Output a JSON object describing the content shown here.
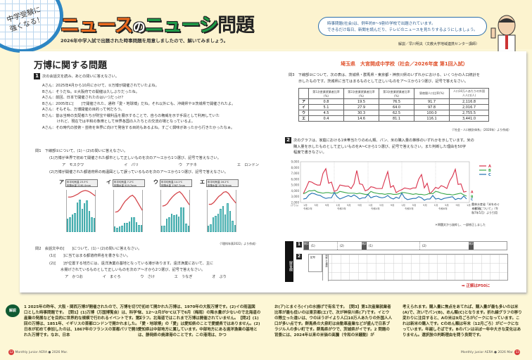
{
  "header": {
    "badge_lines": [
      "中学受験に",
      "強くなる！"
    ],
    "logo": {
      "part1": "ニュース",
      "part2": "の",
      "part3": "ニューシ",
      "part4": "問題",
      "ruby": "もんだい"
    },
    "subtitle": "2026年中学入試で出題された時事問題を用意しましたので、解いてみましょう。",
    "bubble_line1": "時事問題(社会)は、例年約8～9割の学校で出題されています。",
    "bubble_line2": "できるだけ毎日、新聞を読んだり、テレビのニュースを見たりするようにしましょう。",
    "author": "解説／早川明夫（文教大学地域連携センター講師）"
  },
  "main": {
    "title": "万博に関する問題",
    "school": "埼玉県　大宮開成中学校（社会／2026年度 第1回入試）",
    "q1": {
      "num": "1",
      "intro": "次の会話文を読み、あとの問いに答えなさい。",
      "dialogue": [
        "Aさん：2025年4月から10月にかけて、①万博が開催されていたよね。",
        "Bさん：そうだね。②大阪府での開催は久しぶりだったね。",
        "Aさん：前回、日本で開催されたのはいつだっけ？",
        "Bさん：2005年に[　　]で開催された、通称「愛・地球博」だね。それ以外にも、沖縄県や③茨城県で開催されたよ。",
        "Aさん：そもそも、万博開催の目的って何だろう。",
        "Bさん：昔は当時の支配者たちが財宝や戦利品を展示することで、自らの権威を示す手段として利用していた",
        "　　　　けれど、現在では平和の象徴として世界各国の人たちとの交流の場となっているよ。",
        "Aさん：その時代の技術・芸術を世界に向けて発信する目的もあるよね。すごく興味があったから行きたかったなぁ。"
      ],
      "toi1": {
        "head": "問1　下線部①について、(1)・(2)の問いに答えなさい。",
        "p1": "(1)万博が世界で初めて開催された都市として正しいものを次のア～エから1つ選び、記号で答えなさい。",
        "choices1": [
          "ア　モスクワ",
          "イ　パリ",
          "ウ　アテネ",
          "エ　ロンドン"
        ],
        "p2": "(2)万博が開催された都道府県の雨温図として誤っているものを次のア～エから1つ選び、記号で答えなさい。",
        "source": "（『理科年表2022』より作成）"
      },
      "toi2": {
        "head": "問2　会話文中の[　　]について、(1)・(2)の問いに答えなさい。",
        "p1": "(1)[　　]に当てはまる都道府県名を書きなさい。",
        "p2a": "(2)[　　]が位置する地方には、遠洋漁業の基地となっている港があります。遠洋漁業において、主に",
        "p2b": "水揚げされているものとして正しいものを次のア～オから2つ選び、記号で答えなさい。",
        "choices": [
          "ア　かつお",
          "イ　まぐろ",
          "ウ　さけ",
          "エ　うなぎ",
          "オ　ぶり"
        ]
      },
      "toi3": {
        "head": "問3　下線部③について、次の表は、茨城県・群馬県・東京都・神奈川県のいずれかにおける、いくつかの人口統計を",
        "head2": "示したものです。茨城県に当てはまるものとして正しいものをア～エから1つ選び、記号で答えなさい。",
        "source": "（『社会・人口統計体系』（2020年）より作成）"
      }
    },
    "q2": {
      "num": "2",
      "text1": "次のグラフは、家庭における1世帯当たりのめん類、パン、米の購入量の推移のいずれかを示しています。米の",
      "text2": "購入量を示したものとして正しいものをA～Cから1つ選び、記号で答えなさい。また判断した理由を50字",
      "text3": "程度で書きなさい。",
      "graph_source": "農林水産省「米をめぐる状況について」（令和7年5月）より引用",
      "note": "＊問題文から抜粋し、一部修正しました"
    },
    "answer": {
      "label": "解答欄",
      "row1": [
        "問1",
        "(1)",
        "(2)",
        "問2",
        "(1)",
        "(2)",
        "問3"
      ],
      "row2": [
        "記号",
        "判断した理由"
      ],
      "link": "正解はP50に"
    }
  },
  "chart_data": [
    {
      "type": "bar",
      "title": "ア",
      "info": {
        "avg_temp": "年平均気温 23.3℃",
        "precip": "年降水量 2161.0mm"
      },
      "categories": [
        "1",
        "2",
        "3",
        "4",
        "5",
        "6",
        "7",
        "8",
        "9",
        "10",
        "11",
        "12"
      ],
      "values": [
        110,
        120,
        145,
        160,
        245,
        270,
        190,
        240,
        260,
        175,
        120,
        115
      ],
      "temp": [
        18,
        18,
        19,
        21,
        23,
        26,
        28,
        29,
        28,
        26,
        23,
        20
      ],
      "ylabel_left": "気温(℃)",
      "ylabel_right": "降水量(mm)",
      "ylim_temp": [
        -40,
        30
      ],
      "ylim_precip": [
        0,
        350
      ]
    },
    {
      "type": "bar",
      "title": "イ",
      "info": {
        "avg_temp": "年平均気温 7.2℃",
        "precip": "年降水量 919.7mm"
      },
      "categories": [
        "1",
        "2",
        "3",
        "4",
        "5",
        "6",
        "7",
        "8",
        "9",
        "10",
        "11",
        "12"
      ],
      "values": [
        45,
        35,
        45,
        55,
        75,
        75,
        90,
        125,
        125,
        80,
        60,
        60
      ],
      "temp": [
        -7,
        -6,
        -2,
        5,
        11,
        15,
        19,
        21,
        17,
        10,
        3,
        -4
      ],
      "ylabel_left": "気温(℃)",
      "ylabel_right": "降水量(mm)",
      "ylim_temp": [
        -40,
        30
      ],
      "ylim_precip": [
        0,
        350
      ]
    },
    {
      "type": "bar",
      "title": "ウ",
      "info": {
        "avg_temp": "年平均気温 14.1℃",
        "precip": "年降水量 1367.7mm"
      },
      "categories": [
        "1",
        "2",
        "3",
        "4",
        "5",
        "6",
        "7",
        "8",
        "9",
        "10",
        "11",
        "12"
      ],
      "values": [
        55,
        55,
        110,
        125,
        150,
        140,
        145,
        130,
        205,
        205,
        70,
        50
      ],
      "temp": [
        3,
        4,
        7,
        13,
        18,
        22,
        25,
        27,
        23,
        17,
        11,
        5
      ],
      "ylabel_left": "気温(℃)",
      "ylabel_right": "降水量(mm)",
      "ylim_temp": [
        -40,
        30
      ],
      "ylim_precip": [
        0,
        350
      ]
    },
    {
      "type": "bar",
      "title": "エ",
      "info": {
        "avg_temp": "年平均気温 16.2℃",
        "precip": "年降水量 1578.9mm"
      },
      "categories": [
        "1",
        "2",
        "3",
        "4",
        "5",
        "6",
        "7",
        "8",
        "9",
        "10",
        "11",
        "12"
      ],
      "values": [
        55,
        65,
        120,
        135,
        150,
        195,
        215,
        145,
        240,
        175,
        95,
        60
      ],
      "temp": [
        6,
        6,
        9,
        14,
        19,
        22,
        26,
        27,
        24,
        18,
        13,
        8
      ],
      "ylabel_left": "気温(℃)",
      "ylabel_right": "降水量(mm)",
      "ylim_temp": [
        -40,
        30
      ],
      "ylim_precip": [
        0,
        350
      ]
    },
    {
      "type": "table",
      "title": "人口統計",
      "columns": [
        "",
        "第1次産業就業者比率(%)",
        "第2次産業就業者比率(%)",
        "第3次産業就業者比率(%)",
        "昼夜間人口比率(%)",
        "人口10万人あたりの外国人人口(人)"
      ],
      "rows": [
        [
          "ア",
          "0.8",
          "19.5",
          "76.5",
          "91.7",
          "2,116.8"
        ],
        [
          "イ",
          "5.1",
          "27.9",
          "64.0",
          "97.8",
          "2,016.7"
        ],
        [
          "ウ",
          "4.5",
          "30.3",
          "62.5",
          "100.0",
          "2,755.5"
        ],
        [
          "エ",
          "0.4",
          "14.6",
          "81.1",
          "116.1",
          "3,441.0"
        ]
      ]
    },
    {
      "type": "line",
      "title": "1世帯当たりの購入量の推移",
      "ylabel": "(グラム)",
      "ylim": [
        2000,
        9000
      ],
      "yticks": [
        "2,000",
        "3,000",
        "4,000",
        "5,000",
        "6,000",
        "7,000",
        "8,000",
        "9,000"
      ],
      "xticks": [
        "1月",
        "5月",
        "9月",
        "1月",
        "5月",
        "9月",
        "1月",
        "5月",
        "9月",
        "1月",
        "5月",
        "9月",
        "1月",
        "5月",
        "9月",
        "1月"
      ],
      "xgroups": [
        "令和2年",
        "令和3年",
        "令和4年",
        "令和5年",
        "令和6年",
        "令和7年"
      ],
      "legend": [
        "A",
        "B",
        "C"
      ],
      "series": [
        {
          "name": "A",
          "color": "#d9304a",
          "values": [
            3500,
            4500,
            5600,
            5500,
            5200,
            5000,
            5000,
            7000,
            7800,
            5300,
            5500,
            3900,
            4100,
            5000,
            4900,
            4800,
            4800,
            4400,
            5200,
            7500,
            5200,
            5100,
            4000,
            4200,
            4700,
            4600,
            4400,
            4400,
            4400,
            5900,
            7300,
            4600,
            4900,
            3700,
            4000,
            4200,
            4500,
            4400,
            4300,
            4500,
            4500,
            6000,
            6800,
            4500,
            5300,
            3500,
            4000,
            4600,
            4400,
            4900,
            4700,
            4400,
            5700,
            6500,
            7700,
            5100,
            5200,
            3800,
            3900
          ]
        },
        {
          "name": "B",
          "color": "#3aa84a",
          "values": [
            3500,
            3700,
            4000,
            4000,
            4100,
            3800,
            3700,
            3600,
            3700,
            3700,
            3600,
            3700,
            3600,
            3900,
            3800,
            3700,
            3600,
            3600,
            3600,
            3500,
            3600,
            3500,
            3400,
            3400,
            3900,
            3700,
            3600,
            3500,
            3500,
            3400,
            3500,
            3500,
            3400,
            3400,
            3500,
            3700,
            3700,
            3600,
            3500,
            3400,
            3500,
            3400,
            3400,
            3300,
            3400,
            3600,
            3500,
            3900,
            3800,
            3600,
            3500,
            3400,
            3400,
            3300,
            3400,
            3500,
            3600,
            3300,
            3100
          ]
        },
        {
          "name": "C",
          "color": "#1f6fb0",
          "values": [
            2600,
            2700,
            3300,
            3600,
            3500,
            3300,
            3200,
            2900,
            2700,
            2800,
            2800,
            3700,
            3000,
            2600,
            2800,
            3000,
            3200,
            3000,
            3300,
            3000,
            2600,
            2800,
            2800,
            3400,
            2800,
            3000,
            3100,
            2900,
            2800,
            2900,
            3200,
            2800,
            2600,
            2900,
            2700,
            3600,
            2800,
            2500,
            2600,
            2700,
            2700,
            3000,
            2800,
            2400,
            2600,
            2600,
            3200,
            2600,
            2700,
            2500,
            2700,
            2800,
            2900,
            3000,
            2500,
            2700,
            2600,
            3100,
            2600
          ]
        }
      ]
    }
  ],
  "footer": {
    "left_col1": "1 2025年の昨年、大阪・関西万博が開催されたので、万博を切り口とした時事問題です。【問1】(1)万博（万国博覧会）は、科学や産業の発展などを目的に世界的な規模で行われるイベントです。第1回の万博は、1851年、イギリスの首都ロンドンで開かれました。日本が初めて参加したのは、1867年のフランスの首都パリで開かれた万博です。なお、日本",
    "left_col2": "で初めて開かれた万博は、1970年の大阪万博です。(2)イの雨温図は、12～2月が0℃以下で6月（梅雨）の降水量が少ないので北海道のグラフ。北海道ではこれまで万博は開催されていません。【問2】(1)「愛・地球博」の「愛」は愛知県のことで愛媛県ではありません。(2)愛知県は中部地方に属しています。中部地方にある遠洋漁業の基地とは、静岡県の焼津港のことです。この港湾は、かつ",
    "right_col1": "お(ア)とまぐろ(イ)の水揚げで有名です。【問3】第1次産業就業者比率が最も低いのは東京都(エ)で、次が神奈川県(ア)です。イとウの際立った違いは、ウのほうがイより人口10万人あたりの外国人人口が多い点です。群馬県の大泉町は自動車産業などが盛んで日系ブラジル人の多い町です。群馬県がウで、茨城県がイです。2 問題の背景には、2024年以来の米価の高騰（令和の米騒動）が",
    "right_col2": "考えられます。購入量に焦点をあてれば、購入量が最も多いのは米(A)で、次いでパン(B)、めん類(C)となります。折れ線グラフの移り変わりに注目すると、Aの米は9月ごろがピークになっています。これは新米の購入です。Cのめん類は年末（12月ごろ）がピークになっています。年越しそばです。Bのパンはほぼ一年中大きな変化はありません。選択肢の判断理由を問う良問です。",
    "explain_label": "解説",
    "page_left": "12",
    "page_right": "13",
    "magazine": "Monthly junior AERA",
    "issue": "2026 Mar."
  }
}
